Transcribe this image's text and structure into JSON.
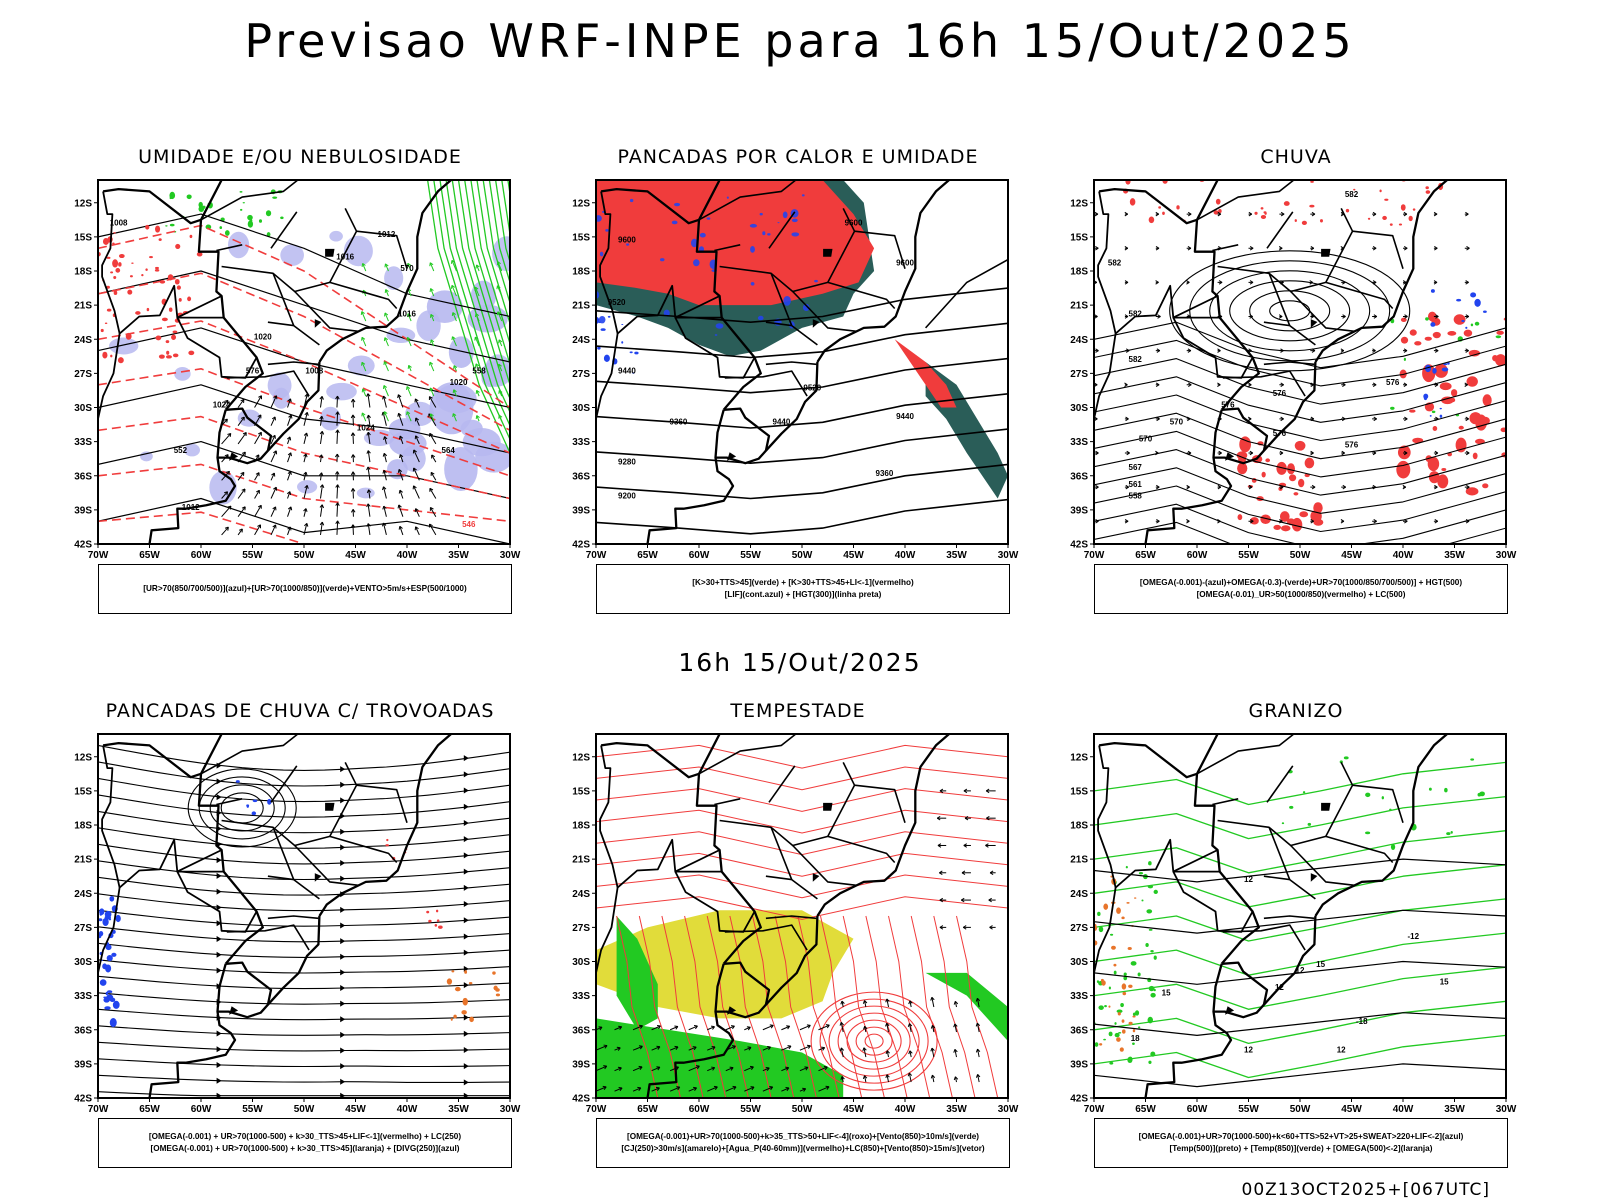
{
  "header": {
    "title": "Previsao WRF-INPE  para 16h 15/Out/2025",
    "mid_date": "16h 15/Out/2025",
    "footer_stamp": "00Z13OCT2025+[067UTC]"
  },
  "axes": {
    "lat_labels": [
      "12S",
      "15S",
      "18S",
      "21S",
      "24S",
      "27S",
      "30S",
      "33S",
      "36S",
      "39S",
      "42S"
    ],
    "lon_labels": [
      "70W",
      "65W",
      "60W",
      "55W",
      "50W",
      "45W",
      "40W",
      "35W",
      "30W"
    ]
  },
  "colors": {
    "red": "#f03c3c",
    "green": "#22c922",
    "blue": "#2244ee",
    "darkteal": "#2a5d58",
    "lavender": "#b7b8f0",
    "yellow": "#e1dc3a",
    "orange": "#e8742a"
  },
  "panels": [
    {
      "id": "umidade",
      "title": "UMIDADE E/OU NEBULOSIDADE",
      "legend": [
        "[UR>70(850/700/500)](azul)+[UR>70(1000/850)](verde)+VENTO>5m/s+ESP(500/1000)"
      ],
      "contour_labels": [
        "1008",
        "1012",
        "1016",
        "1020",
        "1024",
        "1008",
        "1012",
        "1016",
        "1020",
        "1024",
        "570",
        "576",
        "564",
        "558",
        "552",
        "546"
      ]
    },
    {
      "id": "pancadas-calor",
      "title": "PANCADAS POR CALOR E UMIDADE",
      "legend": [
        "[K>30+TTS>45](verde) + [K>30+TTS>45+LI<-1](vermelho)",
        "[LIF](cont.azul) + [HGT(300)](linha preta)"
      ],
      "contour_labels": [
        "9600",
        "9600",
        "9520",
        "9440",
        "9360",
        "9280",
        "9200",
        "9440",
        "9520",
        "9360",
        "9600",
        "9440"
      ]
    },
    {
      "id": "chuva",
      "title": "CHUVA",
      "legend": [
        "[OMEGA(-0.001)-(azul)+OMEGA(-0.3)-(verde)+UR>70(1000/850/700/500)] + HGT(500)",
        "[OMEGA(-0.01)_UR>50(1000/850)(vermelho) + LC(500)"
      ],
      "contour_labels": [
        "582",
        "582",
        "582",
        "582",
        "576",
        "576",
        "576",
        "576",
        "570",
        "570",
        "567",
        "561",
        "558",
        "576"
      ]
    },
    {
      "id": "pancadas-trovoadas",
      "title": "PANCADAS DE CHUVA C/ TROVOADAS",
      "legend": [
        "[OMEGA(-0.001) + UR>70(1000-500) + k>30_TTS>45+LIF<-1](vermelho) + LC(250)",
        "[OMEGA(-0.001) + UR>70(1000-500) + k>30_TTS>45](laranja) + [DIVG(250)](azul)"
      ],
      "contour_labels": []
    },
    {
      "id": "tempestade",
      "title": "TEMPESTADE",
      "legend": [
        "[OMEGA(-0.001)+UR>70(1000-500)+k>35_TTS>50+LIF<-4](roxo)+[Vento(850)>10m/s](verde)",
        "[CJ(250)>30m/s](amarelo)+[Agua_P(40-60mm)](vermelho)+LC(850)+[Vento(850)>15m/s](vetor)"
      ],
      "contour_labels": []
    },
    {
      "id": "granizo",
      "title": "GRANIZO",
      "legend": [
        "[OMEGA(-0.001)+UR>70(1000-500)+k<60+TTS>52+VT>25+SWEAT>220+LIF<-2](azul)",
        "[Temp(500)](preto) + [Temp(850)](verde) + [OMEGA(500)<-2](laranja)"
      ],
      "contour_labels": [
        "12",
        "12",
        "15",
        "15",
        "12",
        "18",
        "-18",
        "12",
        "-12",
        "15",
        "12"
      ]
    }
  ]
}
